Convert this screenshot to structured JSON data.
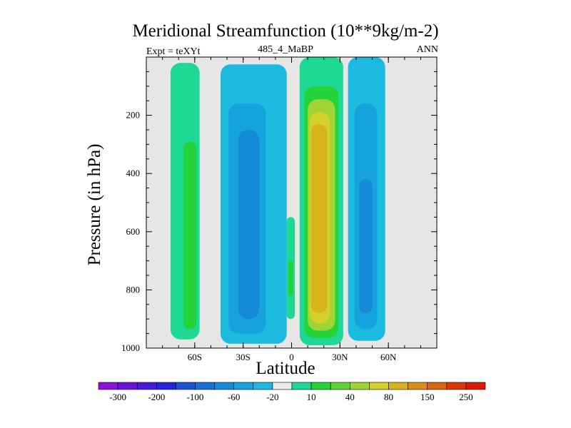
{
  "chart_data": {
    "type": "heatmap",
    "title": "Meridional Streamfunction (10**9kg/m-2)",
    "subtitle_left": "Expt = teXYt",
    "subtitle_center": "485_4_MaBP",
    "subtitle_right": "ANN",
    "xlabel": "Latitude",
    "ylabel": "Pressure (in hPa)",
    "xlim": [
      -90,
      90
    ],
    "ylim": [
      1000,
      0
    ],
    "y_scale": "linear",
    "x_ticks": [
      {
        "value": -60,
        "label": "60S"
      },
      {
        "value": -30,
        "label": "30S"
      },
      {
        "value": 0,
        "label": "0"
      },
      {
        "value": 30,
        "label": "30N"
      },
      {
        "value": 60,
        "label": "60N"
      }
    ],
    "y_ticks": [
      {
        "value": 200,
        "label": "200"
      },
      {
        "value": 400,
        "label": "400"
      },
      {
        "value": 600,
        "label": "600"
      },
      {
        "value": 800,
        "label": "800"
      },
      {
        "value": 1000,
        "label": "1000"
      }
    ],
    "background_color": "#e6e6e6",
    "colorbar": {
      "colors": [
        "#8a12d8",
        "#6a14d8",
        "#4a18d8",
        "#2624d6",
        "#1c50d6",
        "#1670d6",
        "#148ad8",
        "#16a2dc",
        "#1cbade",
        "#ebebeb",
        "#1ed896",
        "#22d43a",
        "#60d436",
        "#a0d434",
        "#d2d22a",
        "#d8b41c",
        "#da8c18",
        "#da6410",
        "#da3a0a",
        "#d81a0a"
      ],
      "labels": [
        "-300",
        "-200",
        "-100",
        "-60",
        "-20",
        "10",
        "40",
        "80",
        "150",
        "250"
      ]
    },
    "field_regions": [
      {
        "level": "10",
        "color": "#1ed896",
        "lat_min": -75,
        "lat_max": -57,
        "p_top": 20,
        "p_bottom": 970
      },
      {
        "level": "40",
        "color": "#22d43a",
        "lat_min": -67,
        "lat_max": -59,
        "p_top": 290,
        "p_bottom": 935
      },
      {
        "level": "-20",
        "color": "#1cbade",
        "lat_min": -44,
        "lat_max": -3,
        "p_top": 25,
        "p_bottom": 985
      },
      {
        "level": "-60",
        "color": "#16a2dc",
        "lat_min": -39,
        "lat_max": -16,
        "p_top": 160,
        "p_bottom": 950
      },
      {
        "level": "-100",
        "color": "#148ad8",
        "lat_min": -33,
        "lat_max": -20,
        "p_top": 250,
        "p_bottom": 900
      },
      {
        "level": "10",
        "color": "#1ed896",
        "lat_min": 5,
        "lat_max": 32,
        "p_top": 0,
        "p_bottom": 990
      },
      {
        "level": "40",
        "color": "#22d43a",
        "lat_min": 8,
        "lat_max": 29,
        "p_top": 100,
        "p_bottom": 965
      },
      {
        "level": "80",
        "color": "#a0d434",
        "lat_min": 10,
        "lat_max": 27,
        "p_top": 145,
        "p_bottom": 940
      },
      {
        "level": "150",
        "color": "#d2d22a",
        "lat_min": 11,
        "lat_max": 24,
        "p_top": 190,
        "p_bottom": 915
      },
      {
        "level": "250",
        "color": "#d8b41c",
        "lat_min": 12,
        "lat_max": 22,
        "p_top": 230,
        "p_bottom": 880
      },
      {
        "level": "10",
        "color": "#1ed896",
        "lat_min": -3,
        "lat_max": 2,
        "p_top": 550,
        "p_bottom": 900
      },
      {
        "level": "40",
        "color": "#22d43a",
        "lat_min": -2,
        "lat_max": 1,
        "p_top": 700,
        "p_bottom": 820
      },
      {
        "level": "-20",
        "color": "#1cbade",
        "lat_min": 35,
        "lat_max": 58,
        "p_top": 0,
        "p_bottom": 975
      },
      {
        "level": "-60",
        "color": "#16a2dc",
        "lat_min": 39,
        "lat_max": 53,
        "p_top": 160,
        "p_bottom": 935
      },
      {
        "level": "-100",
        "color": "#148ad8",
        "lat_min": 42,
        "lat_max": 50,
        "p_top": 420,
        "p_bottom": 880
      }
    ]
  }
}
